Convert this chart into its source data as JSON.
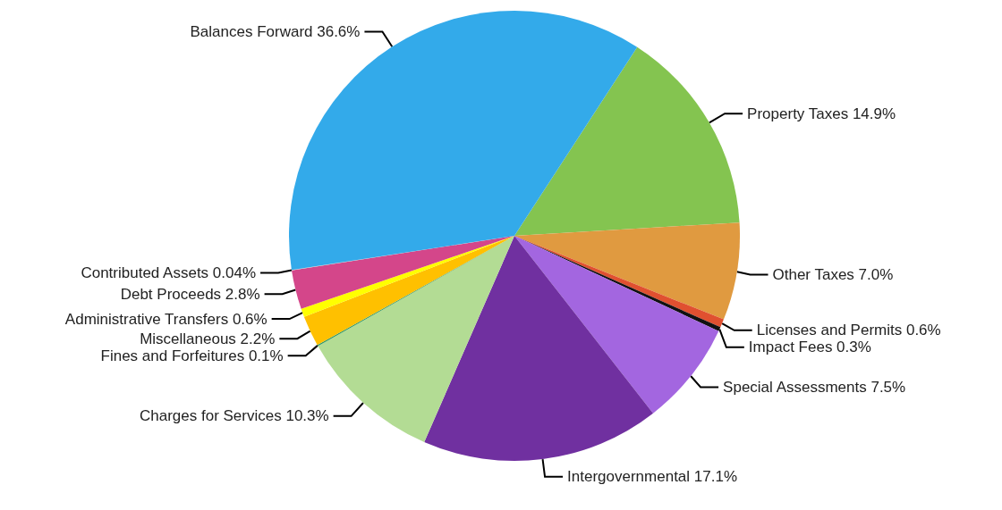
{
  "chart_data": {
    "type": "pie",
    "categories": [
      "Property Taxes",
      "Other Taxes",
      "Licenses and Permits",
      "Impact Fees",
      "Special Assessments",
      "Intergovernmental",
      "Charges for Services",
      "Fines and Forfeitures",
      "Miscellaneous",
      "Administrative Transfers",
      "Debt Proceeds",
      "Contributed Assets",
      "Balances Forward"
    ],
    "values": [
      14.9,
      7.0,
      0.6,
      0.3,
      7.5,
      17.1,
      10.3,
      0.1,
      2.2,
      0.6,
      2.8,
      0.04,
      36.6
    ],
    "value_labels": [
      "14.9%",
      "7.0%",
      "0.6%",
      "0.3%",
      "7.5%",
      "17.1%",
      "10.3%",
      "0.1%",
      "2.2%",
      "0.6%",
      "2.8%",
      "0.04%",
      "36.6%"
    ],
    "colors": [
      "#84c450",
      "#e09a40",
      "#e05030",
      "#111111",
      "#a366e0",
      "#7030a0",
      "#b3dc94",
      "#339966",
      "#ffc000",
      "#ffff00",
      "#d4468a",
      "#c0c0c0",
      "#33aaea"
    ]
  }
}
